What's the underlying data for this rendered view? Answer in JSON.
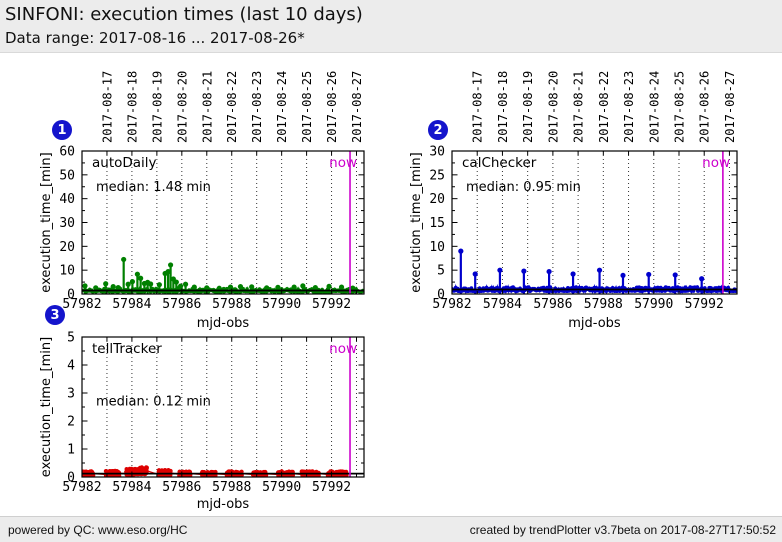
{
  "header": {
    "title": "SINFONI: execution times (last 10 days)",
    "subtitle": "Data range: 2017-08-16 ... 2017-08-26*"
  },
  "footer": {
    "left": "powered by QC: www.eso.org/HC",
    "right": "created by trendPlotter v3.7beta on 2017-08-27T17:50:52"
  },
  "colors": {
    "now_line": "#cc00cc",
    "median_line": "#000000",
    "grid": "#333333",
    "frame": "#000000",
    "badge_bg": "#1414cc",
    "badge_text": "#ffffff",
    "header_bg": "#ececec"
  },
  "chart_data": [
    {
      "badge": "1",
      "type": "scatter",
      "title": "autoDaily",
      "median_value": 1.48,
      "median_label": "median: 1.48 min",
      "median_label_yfrac": 0.25,
      "now_label": "now",
      "now_x": 57992.74,
      "xlabel": "mjd-obs",
      "ylabel": "execution_time_[min]",
      "xlim": [
        57982,
        57993.3
      ],
      "ylim": [
        0,
        60
      ],
      "xticks": [
        57982,
        57984,
        57986,
        57988,
        57990,
        57992
      ],
      "xticks_minor": [
        57983,
        57985,
        57987,
        57989,
        57991,
        57993
      ],
      "yticks": [
        0,
        10,
        20,
        30,
        40,
        50,
        60
      ],
      "ytick_minor_step": 5,
      "date_labels": [
        "2017-08-17",
        "2017-08-18",
        "2017-08-19",
        "2017-08-20",
        "2017-08-21",
        "2017-08-22",
        "2017-08-23",
        "2017-08-24",
        "2017-08-25",
        "2017-08-26",
        "2017-08-27"
      ],
      "date_x": [
        57983,
        57984,
        57985,
        57986,
        57987,
        57988,
        57989,
        57990,
        57991,
        57992,
        57993
      ],
      "color": "#008000",
      "seed": 11,
      "baseline": {
        "x0": 57982.02,
        "x1": 57993.25,
        "y_min": 0.85,
        "y_max": 2.3,
        "points": 430
      },
      "spikes": [
        [
          57982.12,
          3.4
        ],
        [
          57982.55,
          2.6
        ],
        [
          57982.95,
          4.3
        ],
        [
          57983.25,
          3.1
        ],
        [
          57983.45,
          2.7
        ],
        [
          57983.67,
          14.5
        ],
        [
          57983.85,
          4.1
        ],
        [
          57984.02,
          5.2
        ],
        [
          57984.22,
          8.3
        ],
        [
          57984.35,
          6.6
        ],
        [
          57984.5,
          4.4
        ],
        [
          57984.63,
          4.9
        ],
        [
          57984.75,
          4.2
        ],
        [
          57985.1,
          3.9
        ],
        [
          57985.33,
          8.6
        ],
        [
          57985.45,
          9.4
        ],
        [
          57985.55,
          12.2
        ],
        [
          57985.66,
          6.3
        ],
        [
          57985.78,
          5.0
        ],
        [
          57985.95,
          3.3
        ],
        [
          57986.15,
          4.1
        ],
        [
          57986.5,
          2.9
        ],
        [
          57987.0,
          2.6
        ],
        [
          57987.5,
          2.4
        ],
        [
          57987.95,
          2.9
        ],
        [
          57988.35,
          3.1
        ],
        [
          57988.8,
          3.0
        ],
        [
          57989.4,
          2.6
        ],
        [
          57989.85,
          2.8
        ],
        [
          57990.5,
          2.9
        ],
        [
          57990.85,
          3.4
        ],
        [
          57991.35,
          2.7
        ],
        [
          57991.9,
          3.2
        ],
        [
          57992.4,
          2.9
        ],
        [
          57992.85,
          2.5
        ]
      ]
    },
    {
      "badge": "2",
      "type": "scatter",
      "title": "calChecker",
      "median_value": 0.95,
      "median_label": "median: 0.95 min",
      "median_label_yfrac": 0.25,
      "now_label": "now",
      "now_x": 57992.74,
      "xlabel": "mjd-obs",
      "ylabel": "execution_time_[min]",
      "xlim": [
        57982,
        57993.3
      ],
      "ylim": [
        0,
        30
      ],
      "xticks": [
        57982,
        57984,
        57986,
        57988,
        57990,
        57992
      ],
      "xticks_minor": [
        57983,
        57985,
        57987,
        57989,
        57991,
        57993
      ],
      "yticks": [
        0,
        5,
        10,
        15,
        20,
        25,
        30
      ],
      "ytick_minor_step": 2.5,
      "date_labels": [
        "2017-08-17",
        "2017-08-18",
        "2017-08-19",
        "2017-08-20",
        "2017-08-21",
        "2017-08-22",
        "2017-08-23",
        "2017-08-24",
        "2017-08-25",
        "2017-08-26",
        "2017-08-27"
      ],
      "date_x": [
        57983,
        57984,
        57985,
        57986,
        57987,
        57988,
        57989,
        57990,
        57991,
        57992,
        57993
      ],
      "color": "#0000cc",
      "seed": 22,
      "baseline": {
        "x0": 57982.02,
        "x1": 57993.25,
        "y_min": 0.6,
        "y_max": 1.45,
        "points": 450
      },
      "spikes": [
        [
          57982.35,
          9.0
        ],
        [
          57982.92,
          4.2
        ],
        [
          57983.9,
          5.0
        ],
        [
          57984.85,
          4.8
        ],
        [
          57985.85,
          4.7
        ],
        [
          57986.8,
          4.2
        ],
        [
          57987.85,
          5.0
        ],
        [
          57988.78,
          3.9
        ],
        [
          57989.8,
          4.1
        ],
        [
          57990.85,
          4.0
        ],
        [
          57991.9,
          3.2
        ]
      ]
    },
    {
      "badge": "3",
      "type": "scatter",
      "title": "tellTracker",
      "median_value": 0.12,
      "median_label": "median: 0.12 min",
      "median_label_yfrac": 0.46,
      "now_label": "now",
      "now_x": 57992.74,
      "xlabel": "mjd-obs",
      "ylabel": "execution_time_[min]",
      "xlim": [
        57982,
        57993.3
      ],
      "ylim": [
        0,
        5
      ],
      "xticks": [
        57982,
        57984,
        57986,
        57988,
        57990,
        57992
      ],
      "xticks_minor": [
        57983,
        57985,
        57987,
        57989,
        57991,
        57993
      ],
      "yticks": [
        0,
        1,
        2,
        3,
        4,
        5
      ],
      "ytick_minor_step": 0.5,
      "date_labels": [],
      "date_x": [
        57983,
        57984,
        57985,
        57986,
        57987,
        57988,
        57989,
        57990,
        57991,
        57992,
        57993
      ],
      "color": "#dd0000",
      "seed": 33,
      "clusters": [
        {
          "x0": 57982.0,
          "x1": 57982.45,
          "y0": 0.04,
          "y1": 0.2
        },
        {
          "x0": 57982.95,
          "x1": 57983.5,
          "y0": 0.04,
          "y1": 0.22
        },
        {
          "x0": 57983.75,
          "x1": 57984.15,
          "y0": 0.08,
          "y1": 0.3
        },
        {
          "x0": 57984.15,
          "x1": 57984.6,
          "y0": 0.1,
          "y1": 0.35
        },
        {
          "x0": 57985.05,
          "x1": 57985.55,
          "y0": 0.04,
          "y1": 0.25
        },
        {
          "x0": 57985.9,
          "x1": 57986.35,
          "y0": 0.04,
          "y1": 0.2
        },
        {
          "x0": 57986.8,
          "x1": 57987.35,
          "y0": 0.04,
          "y1": 0.18
        },
        {
          "x0": 57987.8,
          "x1": 57988.4,
          "y0": 0.04,
          "y1": 0.2
        },
        {
          "x0": 57988.85,
          "x1": 57989.4,
          "y0": 0.04,
          "y1": 0.18
        },
        {
          "x0": 57989.85,
          "x1": 57990.45,
          "y0": 0.04,
          "y1": 0.2
        },
        {
          "x0": 57990.8,
          "x1": 57991.5,
          "y0": 0.04,
          "y1": 0.2
        },
        {
          "x0": 57991.85,
          "x1": 57992.6,
          "y0": 0.04,
          "y1": 0.2
        }
      ]
    }
  ]
}
